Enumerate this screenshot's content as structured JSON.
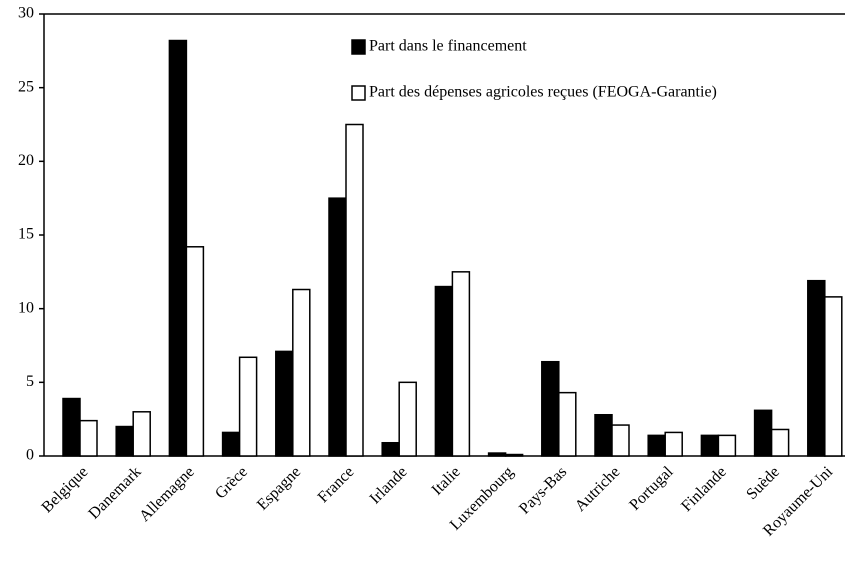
{
  "chart_data": {
    "type": "bar",
    "categories": [
      "Belgique",
      "Danemark",
      "Allemagne",
      "Grèce",
      "Espagne",
      "France",
      "Irlande",
      "Italie",
      "Luxembourg",
      "Pays-Bas",
      "Autriche",
      "Portugal",
      "Finlande",
      "Suède",
      "Royaume-Uni"
    ],
    "series": [
      {
        "name": "Part dans le financement",
        "color": "#000000",
        "values": [
          3.9,
          2.0,
          28.2,
          1.6,
          7.1,
          17.5,
          0.9,
          11.5,
          0.2,
          6.4,
          2.8,
          1.4,
          1.4,
          3.1,
          11.9
        ]
      },
      {
        "name": "Part des dépenses agricoles reçues (FEOGA-Garantie)",
        "color": "#ffffff",
        "values": [
          2.4,
          3.0,
          14.2,
          6.7,
          11.3,
          22.5,
          5.0,
          12.5,
          0.1,
          4.3,
          2.1,
          1.6,
          1.4,
          1.8,
          10.8
        ]
      }
    ],
    "ylim": [
      0,
      30
    ],
    "yticks": [
      0,
      5,
      10,
      15,
      20,
      25,
      30
    ],
    "grid": false,
    "legend": "upper right"
  }
}
